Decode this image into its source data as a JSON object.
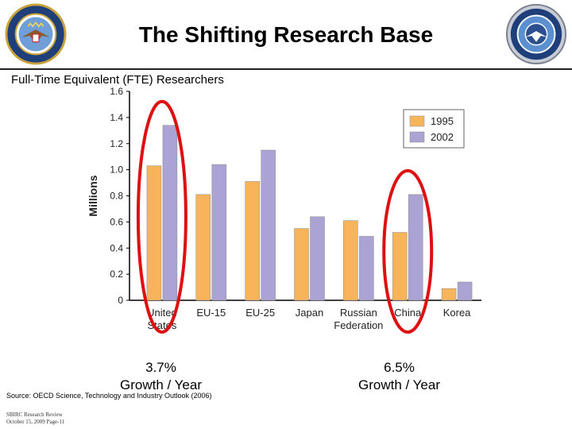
{
  "slide": {
    "title": "The Shifting Research Base",
    "subtitle": "Full-Time Equivalent (FTE) Researchers",
    "source": "Source: OECD Science, Technology and Industry Outlook (2006)",
    "footer_line1": "SBIRC Research Review",
    "footer_line2": "October 15, 2009 Page-11"
  },
  "annotations": {
    "us": {
      "pct": "3.7%",
      "label": "Growth / Year"
    },
    "china": {
      "pct": "6.5%",
      "label": "Growth / Year"
    }
  },
  "colors": {
    "series_1995": "#f7b45a",
    "series_2002": "#aba3d3",
    "highlight": "#dd1111"
  },
  "chart_data": {
    "type": "bar",
    "title": "Full-Time Equivalent (FTE) Researchers",
    "ylabel": "Millions",
    "xlabel": "",
    "ylim": [
      0,
      1.6
    ],
    "yticks": [
      "0",
      "0.2",
      "0.4",
      "0.6",
      "0.8",
      "1.0",
      "1.2",
      "1.4",
      "1.6"
    ],
    "categories": [
      "United States",
      "EU-15",
      "EU-25",
      "Japan",
      "Russian Federation",
      "China",
      "Korea"
    ],
    "category_lines": [
      [
        "United",
        "States"
      ],
      [
        "EU-15"
      ],
      [
        "EU-25"
      ],
      [
        "Japan"
      ],
      [
        "Russian",
        "Federation"
      ],
      [
        "China"
      ],
      [
        "Korea"
      ]
    ],
    "series": [
      {
        "name": "1995",
        "values": [
          1.03,
          0.81,
          0.91,
          0.55,
          0.61,
          0.52,
          0.09
        ]
      },
      {
        "name": "2002",
        "values": [
          1.34,
          1.04,
          1.15,
          0.64,
          0.49,
          0.81,
          0.14
        ]
      }
    ],
    "legend_position": "top-right",
    "highlighted": [
      "United States",
      "China"
    ]
  }
}
